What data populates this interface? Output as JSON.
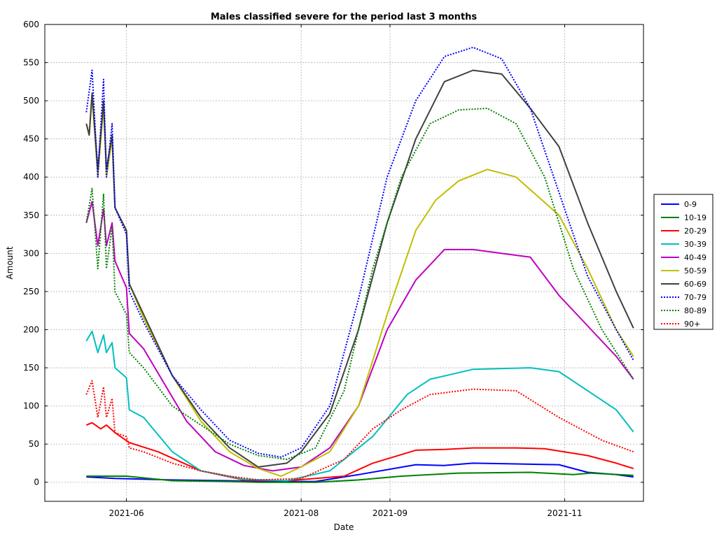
{
  "chart_data": {
    "type": "line",
    "title": "Males classified severe for the period last 3 months",
    "xlabel": "Date",
    "ylabel": "Amount",
    "ylim": [
      -25,
      600
    ],
    "xlim": [
      -14.5,
      194.5
    ],
    "x_is_days_since": "2021-05-18",
    "yticks": [
      0,
      50,
      100,
      150,
      200,
      250,
      300,
      350,
      400,
      450,
      500,
      550,
      600
    ],
    "xticks": [
      {
        "label": "2021-06",
        "value": 14
      },
      {
        "label": "2021-08",
        "value": 75
      },
      {
        "label": "2021-09",
        "value": 106
      },
      {
        "label": "2021-11",
        "value": 167
      }
    ],
    "grid": true,
    "legend": "right",
    "series": [
      {
        "name": "0-9",
        "color": "#0000ff",
        "dash": "solid",
        "points": [
          [
            0,
            7
          ],
          [
            10,
            5
          ],
          [
            30,
            3
          ],
          [
            50,
            2
          ],
          [
            60,
            1
          ],
          [
            80,
            1
          ],
          [
            95,
            10
          ],
          [
            115,
            23
          ],
          [
            125,
            22
          ],
          [
            135,
            25
          ],
          [
            150,
            24
          ],
          [
            165,
            23
          ],
          [
            175,
            13
          ],
          [
            185,
            10
          ],
          [
            191,
            7
          ]
        ]
      },
      {
        "name": "10-19",
        "color": "#008000",
        "dash": "solid",
        "points": [
          [
            0,
            8
          ],
          [
            14,
            8
          ],
          [
            30,
            2
          ],
          [
            50,
            1
          ],
          [
            60,
            0
          ],
          [
            80,
            0
          ],
          [
            95,
            3
          ],
          [
            110,
            8
          ],
          [
            130,
            12
          ],
          [
            155,
            13
          ],
          [
            170,
            10
          ],
          [
            176,
            12
          ],
          [
            191,
            9
          ]
        ]
      },
      {
        "name": "20-29",
        "color": "#ff0000",
        "dash": "solid",
        "points": [
          [
            0,
            75
          ],
          [
            2,
            78
          ],
          [
            5,
            70
          ],
          [
            7,
            75
          ],
          [
            10,
            65
          ],
          [
            15,
            52
          ],
          [
            25,
            40
          ],
          [
            40,
            15
          ],
          [
            55,
            3
          ],
          [
            70,
            2
          ],
          [
            90,
            8
          ],
          [
            100,
            25
          ],
          [
            115,
            42
          ],
          [
            125,
            43
          ],
          [
            135,
            45
          ],
          [
            150,
            45
          ],
          [
            160,
            44
          ],
          [
            175,
            35
          ],
          [
            185,
            25
          ],
          [
            191,
            18
          ]
        ]
      },
      {
        "name": "30-39",
        "color": "#00bfbf",
        "dash": "solid",
        "points": [
          [
            0,
            185
          ],
          [
            2,
            198
          ],
          [
            4,
            170
          ],
          [
            6,
            193
          ],
          [
            7,
            170
          ],
          [
            9,
            183
          ],
          [
            10,
            150
          ],
          [
            14,
            137
          ],
          [
            15,
            95
          ],
          [
            20,
            85
          ],
          [
            30,
            40
          ],
          [
            40,
            15
          ],
          [
            55,
            4
          ],
          [
            70,
            2
          ],
          [
            85,
            15
          ],
          [
            100,
            60
          ],
          [
            112,
            115
          ],
          [
            120,
            135
          ],
          [
            135,
            148
          ],
          [
            155,
            150
          ],
          [
            165,
            145
          ],
          [
            175,
            120
          ],
          [
            185,
            95
          ],
          [
            191,
            66
          ]
        ]
      },
      {
        "name": "40-49",
        "color": "#bf00bf",
        "dash": "solid",
        "points": [
          [
            0,
            340
          ],
          [
            2,
            368
          ],
          [
            4,
            310
          ],
          [
            6,
            358
          ],
          [
            7,
            310
          ],
          [
            9,
            340
          ],
          [
            10,
            290
          ],
          [
            14,
            255
          ],
          [
            15,
            195
          ],
          [
            20,
            175
          ],
          [
            35,
            80
          ],
          [
            45,
            40
          ],
          [
            55,
            22
          ],
          [
            65,
            15
          ],
          [
            75,
            20
          ],
          [
            85,
            45
          ],
          [
            95,
            100
          ],
          [
            105,
            200
          ],
          [
            115,
            265
          ],
          [
            125,
            305
          ],
          [
            135,
            305
          ],
          [
            145,
            300
          ],
          [
            155,
            295
          ],
          [
            165,
            245
          ],
          [
            175,
            205
          ],
          [
            185,
            165
          ],
          [
            191,
            135
          ]
        ]
      },
      {
        "name": "50-59",
        "color": "#bfbf00",
        "dash": "solid",
        "points": [
          [
            0,
            470
          ],
          [
            1,
            455
          ],
          [
            2,
            505
          ],
          [
            4,
            400
          ],
          [
            6,
            493
          ],
          [
            7,
            400
          ],
          [
            9,
            450
          ],
          [
            10,
            360
          ],
          [
            14,
            330
          ],
          [
            15,
            260
          ],
          [
            20,
            215
          ],
          [
            30,
            140
          ],
          [
            40,
            80
          ],
          [
            50,
            40
          ],
          [
            60,
            18
          ],
          [
            68,
            8
          ],
          [
            75,
            20
          ],
          [
            85,
            40
          ],
          [
            95,
            100
          ],
          [
            105,
            220
          ],
          [
            115,
            330
          ],
          [
            122,
            370
          ],
          [
            130,
            395
          ],
          [
            140,
            410
          ],
          [
            150,
            400
          ],
          [
            165,
            350
          ],
          [
            175,
            280
          ],
          [
            185,
            200
          ],
          [
            191,
            165
          ]
        ]
      },
      {
        "name": "60-69",
        "color": "#404040",
        "dash": "solid",
        "points": [
          [
            0,
            470
          ],
          [
            1,
            455
          ],
          [
            2,
            510
          ],
          [
            4,
            410
          ],
          [
            6,
            500
          ],
          [
            7,
            410
          ],
          [
            9,
            455
          ],
          [
            10,
            360
          ],
          [
            14,
            330
          ],
          [
            15,
            260
          ],
          [
            20,
            220
          ],
          [
            30,
            140
          ],
          [
            40,
            85
          ],
          [
            50,
            45
          ],
          [
            60,
            20
          ],
          [
            70,
            25
          ],
          [
            75,
            40
          ],
          [
            85,
            90
          ],
          [
            95,
            200
          ],
          [
            105,
            340
          ],
          [
            115,
            450
          ],
          [
            125,
            525
          ],
          [
            135,
            540
          ],
          [
            145,
            535
          ],
          [
            155,
            490
          ],
          [
            165,
            440
          ],
          [
            175,
            340
          ],
          [
            185,
            250
          ],
          [
            191,
            202
          ]
        ]
      },
      {
        "name": "70-79",
        "color": "#0000ff",
        "dash": "dotted",
        "points": [
          [
            0,
            485
          ],
          [
            2,
            540
          ],
          [
            4,
            400
          ],
          [
            6,
            528
          ],
          [
            7,
            400
          ],
          [
            9,
            470
          ],
          [
            10,
            360
          ],
          [
            14,
            325
          ],
          [
            15,
            250
          ],
          [
            20,
            210
          ],
          [
            30,
            140
          ],
          [
            40,
            95
          ],
          [
            50,
            55
          ],
          [
            60,
            38
          ],
          [
            68,
            33
          ],
          [
            75,
            45
          ],
          [
            85,
            100
          ],
          [
            95,
            240
          ],
          [
            105,
            400
          ],
          [
            115,
            500
          ],
          [
            125,
            558
          ],
          [
            135,
            570
          ],
          [
            145,
            555
          ],
          [
            155,
            490
          ],
          [
            165,
            380
          ],
          [
            175,
            270
          ],
          [
            185,
            200
          ],
          [
            191,
            160
          ]
        ]
      },
      {
        "name": "80-89",
        "color": "#008000",
        "dash": "dotted",
        "points": [
          [
            0,
            340
          ],
          [
            2,
            385
          ],
          [
            4,
            280
          ],
          [
            6,
            378
          ],
          [
            7,
            280
          ],
          [
            9,
            335
          ],
          [
            10,
            250
          ],
          [
            14,
            220
          ],
          [
            15,
            170
          ],
          [
            20,
            150
          ],
          [
            30,
            100
          ],
          [
            40,
            75
          ],
          [
            50,
            50
          ],
          [
            60,
            35
          ],
          [
            70,
            30
          ],
          [
            80,
            45
          ],
          [
            90,
            120
          ],
          [
            100,
            280
          ],
          [
            110,
            400
          ],
          [
            120,
            470
          ],
          [
            130,
            488
          ],
          [
            140,
            490
          ],
          [
            150,
            470
          ],
          [
            160,
            400
          ],
          [
            170,
            280
          ],
          [
            180,
            200
          ],
          [
            191,
            135
          ]
        ]
      },
      {
        "name": "90+",
        "color": "#ff0000",
        "dash": "dotted",
        "points": [
          [
            0,
            115
          ],
          [
            2,
            133
          ],
          [
            4,
            85
          ],
          [
            6,
            125
          ],
          [
            7,
            85
          ],
          [
            9,
            110
          ],
          [
            10,
            65
          ],
          [
            14,
            60
          ],
          [
            15,
            45
          ],
          [
            20,
            40
          ],
          [
            30,
            25
          ],
          [
            40,
            15
          ],
          [
            50,
            8
          ],
          [
            60,
            3
          ],
          [
            75,
            5
          ],
          [
            90,
            30
          ],
          [
            100,
            70
          ],
          [
            110,
            95
          ],
          [
            120,
            115
          ],
          [
            135,
            122
          ],
          [
            150,
            120
          ],
          [
            165,
            85
          ],
          [
            180,
            55
          ],
          [
            191,
            40
          ]
        ]
      }
    ]
  }
}
